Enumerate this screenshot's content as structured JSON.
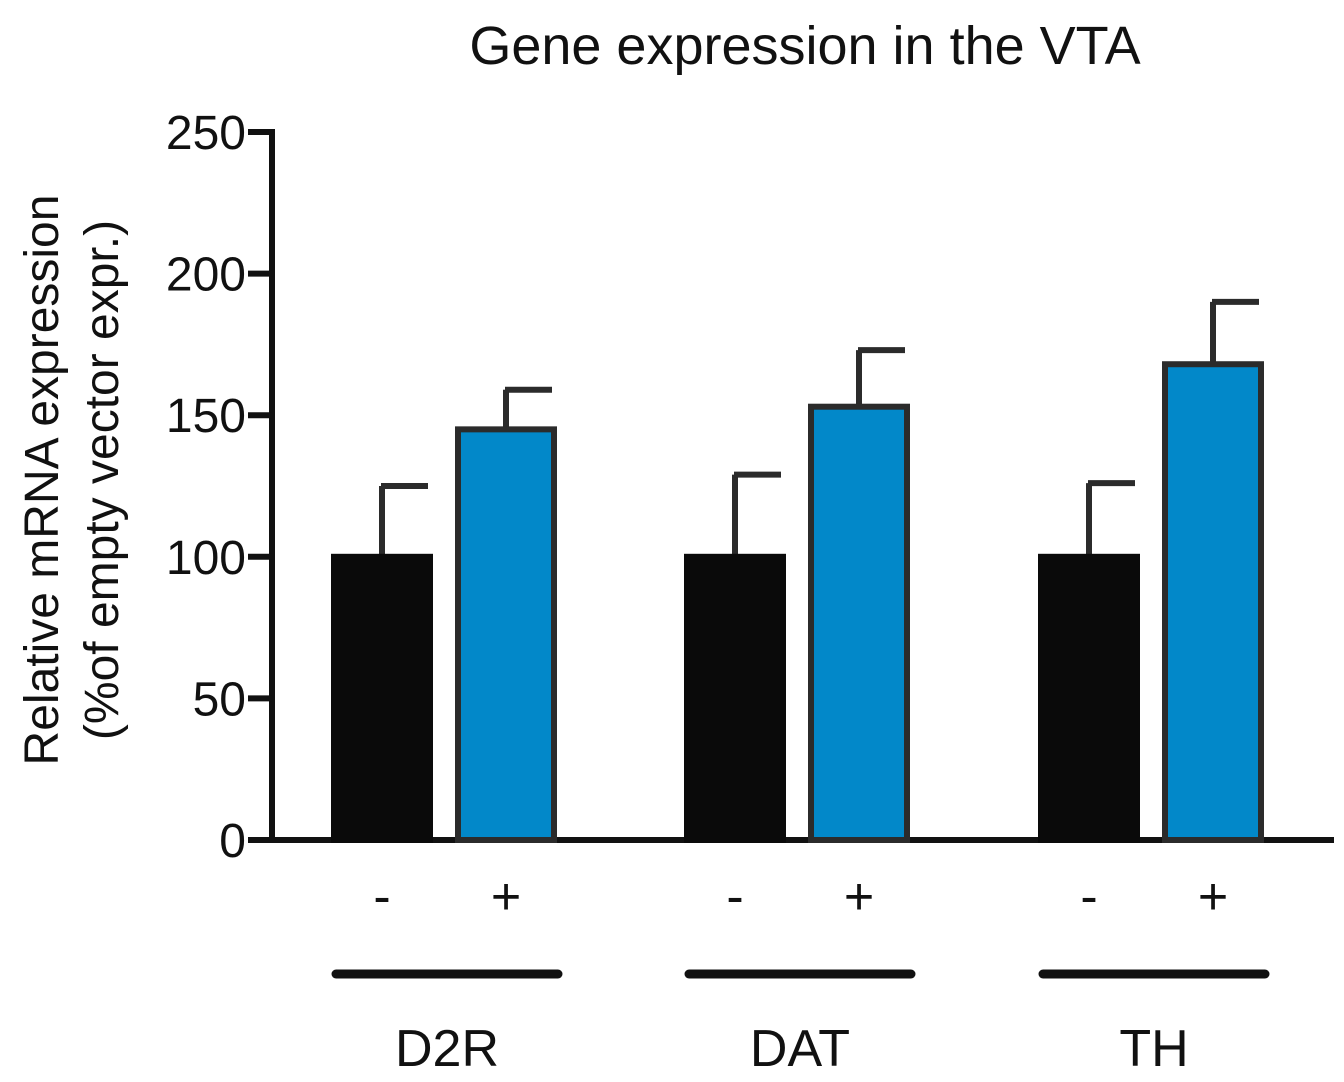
{
  "chart_data": {
    "type": "bar",
    "title": "Gene expression in the VTA",
    "ylabel_line1": "Relative mRNA expression",
    "ylabel_line2": "(%of empty vector expr.)",
    "ylim": [
      0,
      250
    ],
    "yticks": [
      0,
      50,
      100,
      150,
      200,
      250
    ],
    "ytick_labels": [
      "0",
      "50",
      "100",
      "150",
      "200",
      "250"
    ],
    "groups": [
      {
        "name": "D2R",
        "bars": [
          {
            "label": "-",
            "value": 100,
            "error": 25
          },
          {
            "label": "+",
            "value": 145,
            "error": 14
          }
        ]
      },
      {
        "name": "DAT",
        "bars": [
          {
            "label": "-",
            "value": 100,
            "error": 29
          },
          {
            "label": "+",
            "value": 153,
            "error": 20
          }
        ]
      },
      {
        "name": "TH",
        "bars": [
          {
            "label": "-",
            "value": 100,
            "error": 26
          },
          {
            "label": "+",
            "value": 168,
            "error": 22
          }
        ]
      }
    ],
    "series_colors": {
      "minus": "#0a0a0a",
      "plus": "#0288c9"
    },
    "outline_color": "#2b2b2b",
    "axis_color": "#111111"
  }
}
